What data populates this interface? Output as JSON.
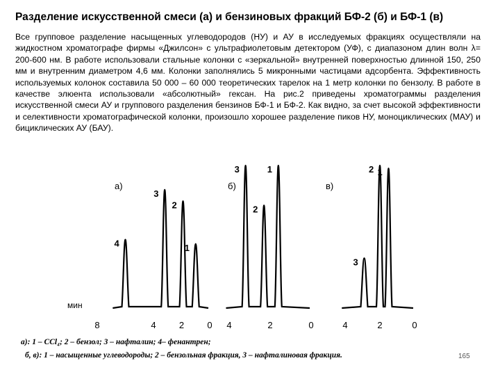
{
  "title": "Разделение искусственной смеси (а) и бензиновых фракций БФ-2 (б) и БФ-1 (в)",
  "paragraph": "Все групповое разделение насыщенных углеводородов (НУ) и АУ в исследуемых фракциях осуществляли на жидкостном хроматографе фирмы «Джилсон» с ультрафиолетовым детектором (УФ), с диапазоном длин волн λ= 200-600 нм. В работе использовали стальные колонки с «зеркальной» внутренней поверхностью длинной 150, 250 мм и внутренним диаметром 4,6 мм. Колонки заполнялись 5 микронными частицами адсорбента. Эффективность используемых колонок составила 50 000 – 60 000 теоретических тарелок на 1 метр колонки по бензолу. В работе в качестве элюента использовали «абсолютный» гексан. На рис.2 приведены хроматограммы разделения искусственной смеси АУ и группового разделения бензинов БФ-1 и БФ-2. Как видно, за счет высокой эффективности и селективности хроматографической колонки, произошло хорошее разделение пиков НУ, моноциклических (МАУ) и бициклических АУ (БАУ).",
  "axis_unit": "мин",
  "chart_data": [
    {
      "type": "line",
      "label": "а)",
      "x_ticks": [
        "8",
        "4",
        "2",
        "0"
      ],
      "peaks": [
        {
          "label": "4",
          "time_min": 6.0,
          "height": 0.48
        },
        {
          "label": "3",
          "time_min": 3.2,
          "height": 0.83
        },
        {
          "label": "2",
          "time_min": 1.9,
          "height": 0.75
        },
        {
          "label": "1",
          "time_min": 1.0,
          "height": 0.45
        }
      ]
    },
    {
      "type": "line",
      "label": "б)",
      "x_ticks": [
        "4",
        "2",
        "0"
      ],
      "peaks": [
        {
          "label": "3",
          "time_min": 3.2,
          "height": 1.0
        },
        {
          "label": "2",
          "time_min": 2.3,
          "height": 0.72
        },
        {
          "label": "1",
          "time_min": 1.6,
          "height": 1.0
        }
      ]
    },
    {
      "type": "line",
      "label": "в)",
      "x_ticks": [
        "4",
        "2",
        "0"
      ],
      "peaks": [
        {
          "label": "3",
          "time_min": 2.9,
          "height": 0.35
        },
        {
          "label": "2",
          "time_min": 2.0,
          "height": 1.0
        },
        {
          "label": "1",
          "time_min": 1.5,
          "height": 0.98
        }
      ]
    }
  ],
  "caption_a": "а): 1 – CCl₄; 2 – бензол; 3 – нафталин; 4– фенантрен;",
  "caption_b": "б, в): 1 – насыщенные углеводороды; 2 – бензольная фракция, 3 – нафталиновая фракция.",
  "page_number": "165"
}
